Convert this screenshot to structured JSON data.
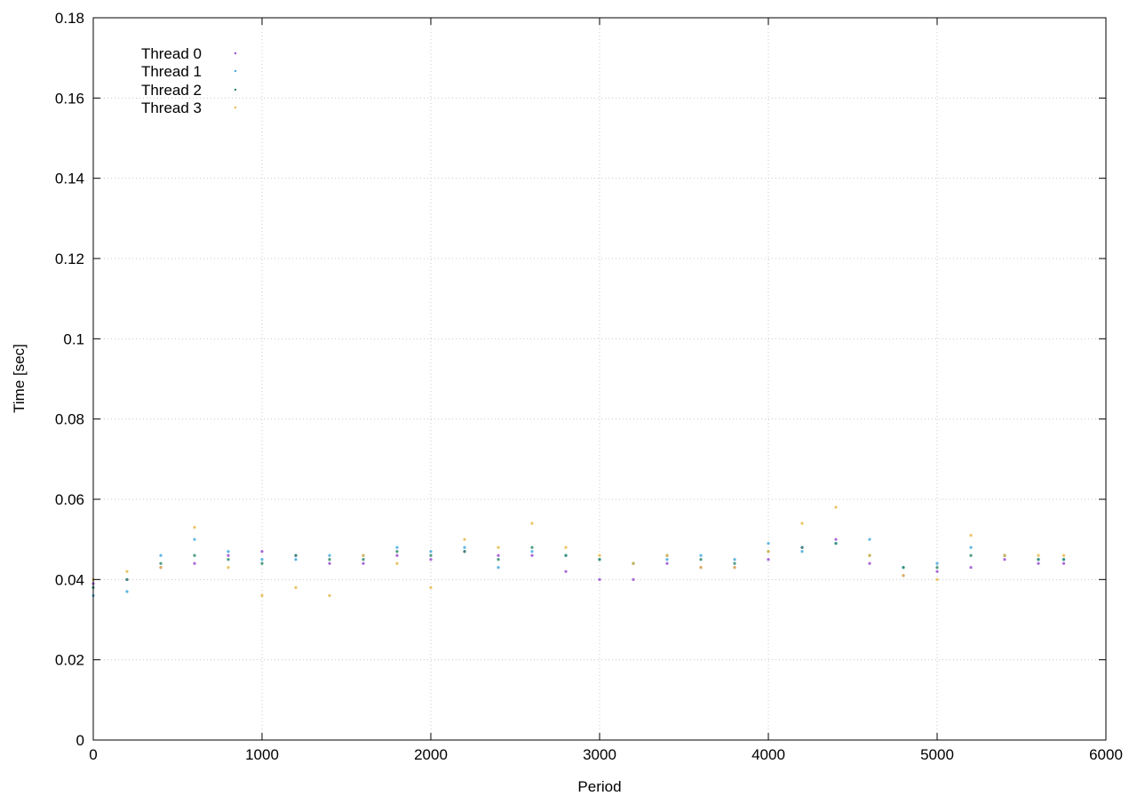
{
  "chart_data": {
    "type": "scatter",
    "title": "",
    "xlabel": "Period",
    "ylabel": "Time [sec]",
    "xlim": [
      0,
      6000
    ],
    "ylim": [
      0,
      0.18
    ],
    "x_ticks": [
      0,
      1000,
      2000,
      3000,
      4000,
      5000,
      6000
    ],
    "y_ticks": [
      0,
      0.02,
      0.04,
      0.06,
      0.08,
      0.1,
      0.12,
      0.14,
      0.16,
      0.18
    ],
    "y_tick_labels": [
      "0",
      "0.02",
      "0.04",
      "0.06",
      "0.08",
      "0.1",
      "0.12",
      "0.14",
      "0.16",
      "0.18"
    ],
    "grid": true,
    "legend_position": "top-left",
    "series": [
      {
        "name": "Thread 0",
        "color": "#9a4fd0",
        "x": [
          0,
          200,
          400,
          600,
          800,
          1000,
          1200,
          1400,
          1600,
          1800,
          2000,
          2200,
          2400,
          2600,
          2800,
          3000,
          3200,
          3400,
          3600,
          3800,
          4000,
          4200,
          4400,
          4600,
          4800,
          5000,
          5200,
          5400,
          5600,
          5750
        ],
        "y": [
          0.039,
          0.04,
          0.043,
          0.044,
          0.046,
          0.047,
          0.046,
          0.044,
          0.044,
          0.046,
          0.045,
          0.047,
          0.046,
          0.046,
          0.042,
          0.04,
          0.04,
          0.044,
          0.043,
          0.043,
          0.045,
          0.048,
          0.05,
          0.044,
          0.041,
          0.042,
          0.043,
          0.045,
          0.044,
          0.044
        ]
      },
      {
        "name": "Thread 1",
        "color": "#45a9dd",
        "x": [
          0,
          200,
          400,
          600,
          800,
          1000,
          1200,
          1400,
          1600,
          1800,
          2000,
          2200,
          2400,
          2600,
          2800,
          3000,
          3200,
          3400,
          3600,
          3800,
          4000,
          4200,
          4400,
          4600,
          4800,
          5000,
          5200,
          5400,
          5600,
          5750
        ],
        "y": [
          0.036,
          0.037,
          0.046,
          0.05,
          0.047,
          0.045,
          0.045,
          0.046,
          0.046,
          0.048,
          0.047,
          0.048,
          0.043,
          0.047,
          0.046,
          0.045,
          0.044,
          0.045,
          0.046,
          0.045,
          0.049,
          0.047,
          0.049,
          0.05,
          0.043,
          0.044,
          0.048,
          0.046,
          0.045,
          0.045
        ]
      },
      {
        "name": "Thread 2",
        "color": "#2e8b6f",
        "x": [
          0,
          200,
          400,
          600,
          800,
          1000,
          1200,
          1400,
          1600,
          1800,
          2000,
          2200,
          2400,
          2600,
          2800,
          3000,
          3200,
          3400,
          3600,
          3800,
          4000,
          4200,
          4400,
          4600,
          4800,
          5000,
          5200,
          5400,
          5600,
          5750
        ],
        "y": [
          0.038,
          0.04,
          0.044,
          0.046,
          0.045,
          0.044,
          0.046,
          0.045,
          0.045,
          0.047,
          0.046,
          0.047,
          0.045,
          0.048,
          0.046,
          0.045,
          0.044,
          0.046,
          0.045,
          0.044,
          0.047,
          0.048,
          0.049,
          0.046,
          0.043,
          0.043,
          0.046,
          0.046,
          0.045,
          0.045
        ]
      },
      {
        "name": "Thread 3",
        "color": "#e8b84a",
        "x": [
          0,
          200,
          400,
          600,
          800,
          1000,
          1200,
          1400,
          1600,
          1800,
          2000,
          2200,
          2400,
          2600,
          2800,
          3000,
          3200,
          3400,
          3600,
          3800,
          4000,
          4200,
          4400,
          4600,
          4800,
          5000,
          5200,
          5400,
          5600,
          5750
        ],
        "y": [
          0.04,
          0.042,
          0.043,
          0.053,
          0.043,
          0.036,
          0.038,
          0.036,
          0.046,
          0.044,
          0.038,
          0.05,
          0.048,
          0.054,
          0.048,
          0.046,
          0.044,
          0.046,
          0.043,
          0.043,
          0.047,
          0.054,
          0.058,
          0.046,
          0.041,
          0.04,
          0.051,
          0.046,
          0.046,
          0.046
        ]
      }
    ]
  }
}
